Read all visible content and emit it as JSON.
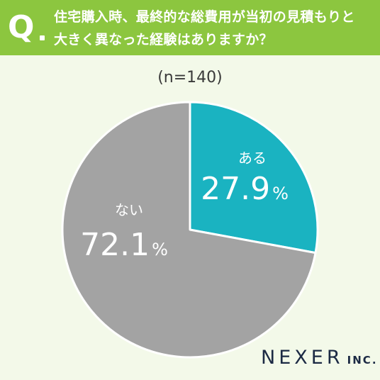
{
  "header": {
    "q_letter": "Q",
    "line1": "住宅購入時、最終的な総費用が当初の見積もりと",
    "line2": "大きく異なった経験はありますか？"
  },
  "sample_size": "(n=140)",
  "chart_data": {
    "type": "pie",
    "categories": [
      "ある",
      "ない"
    ],
    "values": [
      27.9,
      72.1
    ],
    "value_labels": [
      "27.9",
      "72.1"
    ],
    "unit": "%",
    "colors": [
      "#1ab3c1",
      "#a3a3a3"
    ],
    "start": "12 o'clock",
    "direction": "clockwise"
  },
  "logo": {
    "main": "NEXER",
    "sub": "INC."
  },
  "colors": {
    "header_bg": "#8cc63f",
    "page_bg": "#f3f9e9",
    "logo": "#1c2a44"
  }
}
